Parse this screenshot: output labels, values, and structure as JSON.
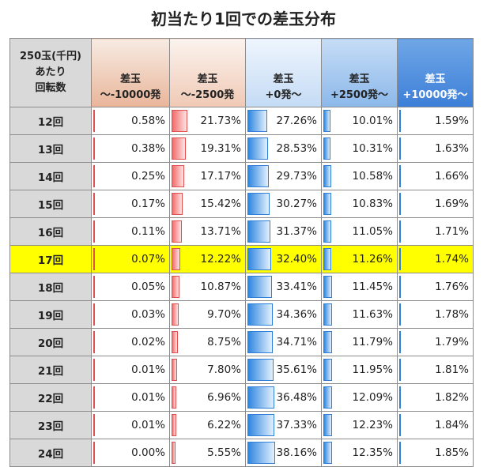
{
  "title": "初当たり1回での差玉分布",
  "corner_header": [
    "250玉(千円)",
    "あたり",
    "回転数"
  ],
  "colors": {
    "highlight_row": "#ffff00",
    "row_header_bg": "#d9d9d9",
    "red_bar": "#f08080",
    "blue_bar": "#3b8ee6"
  },
  "chart_data": {
    "type": "table",
    "title": "初当たり1回での差玉分布",
    "columns": [
      {
        "label": [
          "差玉",
          "～-10000発"
        ],
        "header_color": [
          "#f7ebe2",
          "#e9b59a"
        ],
        "bar_color": "#f08080",
        "max": 100
      },
      {
        "label": [
          "差玉",
          "～-2500発"
        ],
        "header_color": [
          "#fbf3ee",
          "#f0c9b5"
        ],
        "bar_color": "#f08080",
        "max": 100
      },
      {
        "label": [
          "差玉",
          "+0発～"
        ],
        "header_color": [
          "#eef5fd",
          "#c4dbf5"
        ],
        "bar_color": "#3b8ee6",
        "max": 100
      },
      {
        "label": [
          "差玉",
          "+2500発～"
        ],
        "header_color": [
          "#c6dcf5",
          "#8bb8ea"
        ],
        "bar_color": "#3b8ee6",
        "max": 100
      },
      {
        "label": [
          "差玉",
          "+10000発～"
        ],
        "header_color": [
          "#6fa6e6",
          "#3d7fd8"
        ],
        "bar_color": "#3b8ee6",
        "max": 100
      }
    ],
    "highlight_row": "17回",
    "rows": [
      {
        "label": "12回",
        "values": [
          0.58,
          21.73,
          27.26,
          10.01,
          1.59
        ]
      },
      {
        "label": "13回",
        "values": [
          0.38,
          19.31,
          28.53,
          10.31,
          1.63
        ]
      },
      {
        "label": "14回",
        "values": [
          0.25,
          17.17,
          29.73,
          10.58,
          1.66
        ]
      },
      {
        "label": "15回",
        "values": [
          0.17,
          15.42,
          30.27,
          10.83,
          1.69
        ]
      },
      {
        "label": "16回",
        "values": [
          0.11,
          13.71,
          31.37,
          11.05,
          1.71
        ]
      },
      {
        "label": "17回",
        "values": [
          0.07,
          12.22,
          32.4,
          11.26,
          1.74
        ]
      },
      {
        "label": "18回",
        "values": [
          0.05,
          10.87,
          33.41,
          11.45,
          1.76
        ]
      },
      {
        "label": "19回",
        "values": [
          0.03,
          9.7,
          34.36,
          11.63,
          1.78
        ]
      },
      {
        "label": "20回",
        "values": [
          0.02,
          8.75,
          34.71,
          11.79,
          1.79
        ]
      },
      {
        "label": "21回",
        "values": [
          0.01,
          7.8,
          35.61,
          11.95,
          1.81
        ]
      },
      {
        "label": "22回",
        "values": [
          0.01,
          6.96,
          36.48,
          12.09,
          1.82
        ]
      },
      {
        "label": "23回",
        "values": [
          0.01,
          6.22,
          37.33,
          12.23,
          1.84
        ]
      },
      {
        "label": "24回",
        "values": [
          0.0,
          5.55,
          38.16,
          12.35,
          1.85
        ]
      }
    ]
  }
}
